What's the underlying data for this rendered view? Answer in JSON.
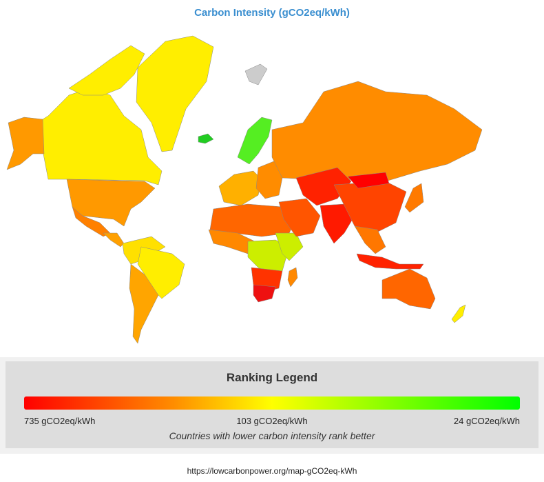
{
  "title": "Carbon Intensity (gCO2eq/kWh)",
  "legend": {
    "heading": "Ranking Legend",
    "min_label": "735 gCO2eq/kWh",
    "mid_label": "103 gCO2eq/kWh",
    "max_label": "24 gCO2eq/kWh",
    "note": "Countries with lower carbon intensity rank better",
    "colors": [
      "#ff0000",
      "#ff8c00",
      "#ffff00",
      "#99ff00",
      "#00ff00"
    ]
  },
  "source_url": "https://lowcarbonpower.org/map-gCO2eq-kWh",
  "regions": [
    {
      "name": "greenland",
      "color": "#ffee00"
    },
    {
      "name": "canada",
      "color": "#ffee00"
    },
    {
      "name": "alaska",
      "color": "#ff9900"
    },
    {
      "name": "usa",
      "color": "#ff9900"
    },
    {
      "name": "mexico",
      "color": "#ff8000"
    },
    {
      "name": "central-america",
      "color": "#ffa000"
    },
    {
      "name": "south-america-north",
      "color": "#ffe000"
    },
    {
      "name": "brazil",
      "color": "#ffee00"
    },
    {
      "name": "south-america-south",
      "color": "#ffa500"
    },
    {
      "name": "iceland",
      "color": "#22cc22"
    },
    {
      "name": "scandinavia",
      "color": "#55ee22"
    },
    {
      "name": "europe-west",
      "color": "#ffb000"
    },
    {
      "name": "europe-east",
      "color": "#ff8c00"
    },
    {
      "name": "russia",
      "color": "#ff8c00"
    },
    {
      "name": "north-africa",
      "color": "#ff6600"
    },
    {
      "name": "west-africa",
      "color": "#ff8800"
    },
    {
      "name": "central-africa",
      "color": "#ccee00"
    },
    {
      "name": "southern-africa",
      "color": "#ff3300"
    },
    {
      "name": "south-africa",
      "color": "#ee1111"
    },
    {
      "name": "madagascar",
      "color": "#ff8800"
    },
    {
      "name": "middle-east",
      "color": "#ff5500"
    },
    {
      "name": "central-asia",
      "color": "#ff2200"
    },
    {
      "name": "india",
      "color": "#ff1a00"
    },
    {
      "name": "china",
      "color": "#ff4400"
    },
    {
      "name": "mongolia",
      "color": "#ff0000"
    },
    {
      "name": "southeast-asia",
      "color": "#ff7700"
    },
    {
      "name": "indonesia",
      "color": "#ff2200"
    },
    {
      "name": "japan",
      "color": "#ff7a00"
    },
    {
      "name": "australia",
      "color": "#ff6600"
    },
    {
      "name": "new-zealand",
      "color": "#ffee00"
    },
    {
      "name": "svalbard",
      "color": "#cccccc"
    }
  ]
}
